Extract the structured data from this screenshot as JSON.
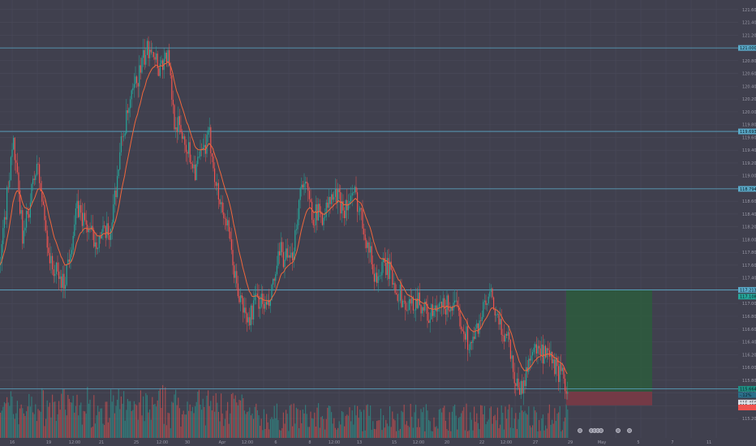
{
  "colors": {
    "background": "#40404e",
    "grid": "#4a4a5a",
    "up": "#26a69a",
    "down": "#ef5350",
    "ma": "#f0663c",
    "hline": "#5aa9c8",
    "target_zone": "#2e5a3e",
    "stop_zone": "#7a3a46",
    "text": "#9a9aa8"
  },
  "chart_data": {
    "type": "candlestick",
    "y_range": [
      115.15,
      121.75
    ],
    "y_ticks": [
      "121.600",
      "121.400",
      "121.200",
      "121.000",
      "120.800",
      "120.600",
      "120.400",
      "120.200",
      "120.000",
      "119.800",
      "119.600",
      "119.400",
      "119.200",
      "119.000",
      "118.800",
      "118.600",
      "118.400",
      "118.200",
      "118.000",
      "117.800",
      "117.600",
      "117.400",
      "117.200",
      "117.000",
      "116.800",
      "116.600",
      "116.400",
      "116.200",
      "116.000",
      "115.800",
      "115.600",
      "115.400",
      "115.200"
    ],
    "x_ticks": [
      "16",
      "19",
      "12:00",
      "21",
      "25",
      "12:00",
      "30",
      "Apr",
      "12:00",
      "6",
      "8",
      "12:00",
      "13",
      "15",
      "12:00",
      "20",
      "22",
      "12:00",
      "27",
      "29",
      "May",
      "5",
      "7",
      "11"
    ],
    "horizontal_lines": [
      {
        "value": 121.0,
        "label": "121.000"
      },
      {
        "value": 119.693,
        "label": "119.693"
      },
      {
        "value": 118.794,
        "label": "118.794"
      },
      {
        "value": 117.213,
        "label": "117.213"
      },
      {
        "value": 115.664,
        "label": "115.664"
      }
    ],
    "price_labels": [
      {
        "value": 117.108,
        "label": "117.108"
      },
      {
        "value": 115.664,
        "label": "115.664"
      },
      {
        "value": 115.568,
        "label": "-.12%"
      },
      {
        "value": 115.45,
        "label": "115.450"
      },
      {
        "value": 115.406,
        "label": "115.406"
      },
      {
        "value": 115.372,
        "label": ""
      }
    ],
    "position": {
      "entry": 115.62,
      "target": 117.213,
      "stop": 115.406
    },
    "anchor_points": [
      [
        0,
        117.6
      ],
      [
        15,
        119.6
      ],
      [
        28,
        118.0
      ],
      [
        45,
        119.2
      ],
      [
        62,
        117.6
      ],
      [
        78,
        117.3
      ],
      [
        95,
        118.5
      ],
      [
        115,
        118.0
      ],
      [
        135,
        118.1
      ],
      [
        150,
        119.6
      ],
      [
        166,
        120.4
      ],
      [
        176,
        120.8
      ],
      [
        186,
        121.1
      ],
      [
        195,
        120.7
      ],
      [
        206,
        120.9
      ],
      [
        214,
        119.9
      ],
      [
        226,
        119.6
      ],
      [
        240,
        119.1
      ],
      [
        258,
        119.6
      ],
      [
        268,
        118.7
      ],
      [
        278,
        118.3
      ],
      [
        292,
        117.2
      ],
      [
        305,
        116.7
      ],
      [
        316,
        117.1
      ],
      [
        330,
        116.9
      ],
      [
        345,
        117.8
      ],
      [
        358,
        117.6
      ],
      [
        372,
        119.0
      ],
      [
        385,
        118.4
      ],
      [
        398,
        118.4
      ],
      [
        412,
        118.7
      ],
      [
        424,
        118.5
      ],
      [
        438,
        118.7
      ],
      [
        452,
        118.0
      ],
      [
        462,
        117.4
      ],
      [
        476,
        117.6
      ],
      [
        490,
        117.2
      ],
      [
        502,
        116.9
      ],
      [
        514,
        117.1
      ],
      [
        528,
        116.8
      ],
      [
        542,
        116.9
      ],
      [
        554,
        117.0
      ],
      [
        566,
        116.8
      ],
      [
        580,
        116.3
      ],
      [
        592,
        116.8
      ],
      [
        604,
        117.1
      ],
      [
        616,
        116.6
      ],
      [
        626,
        116.5
      ],
      [
        634,
        115.8
      ],
      [
        644,
        115.65
      ],
      [
        654,
        116.3
      ],
      [
        666,
        116.2
      ],
      [
        678,
        116.1
      ],
      [
        690,
        115.9
      ],
      [
        700,
        115.62
      ]
    ],
    "bounce_markers": [
      715,
      729,
      733,
      737,
      741,
      762,
      776
    ]
  }
}
